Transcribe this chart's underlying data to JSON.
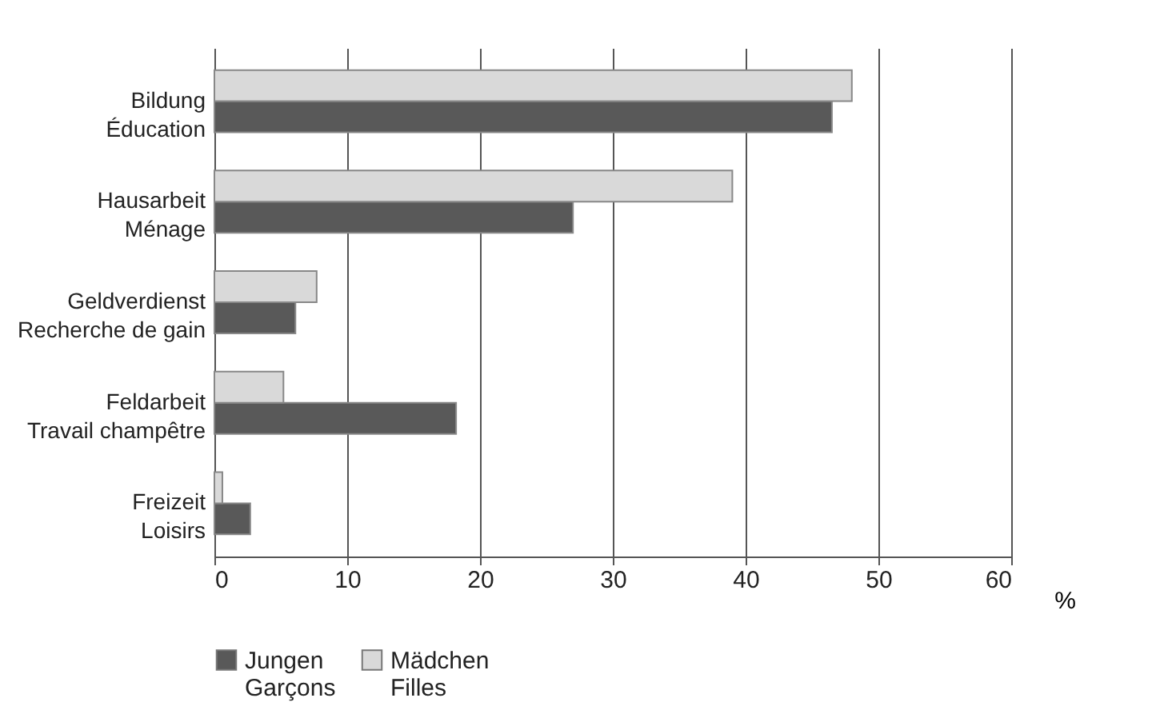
{
  "chart_data": {
    "type": "bar",
    "orientation": "horizontal",
    "xlabel": "%",
    "categories": [
      "Bildung\nÉducation",
      "Hausarbeit\nMénage",
      "Geldverdienst\nRecherche de gain",
      "Feldarbeit\nTravail champêtre",
      "Freizeit\nLoisirs"
    ],
    "series": [
      {
        "name": "Jungen\nGarçons",
        "color": "#595959",
        "values": [
          46.5,
          27,
          6.1,
          18.2,
          2.7
        ]
      },
      {
        "name": "Mädchen\nFilles",
        "color": "#d9d9d9",
        "values": [
          48,
          39,
          7.7,
          5.2,
          0.6
        ]
      }
    ],
    "xlim": [
      0,
      60
    ],
    "xticks": [
      0,
      10,
      20,
      30,
      40,
      50,
      60
    ],
    "grid": "x",
    "legend": "bottom"
  }
}
